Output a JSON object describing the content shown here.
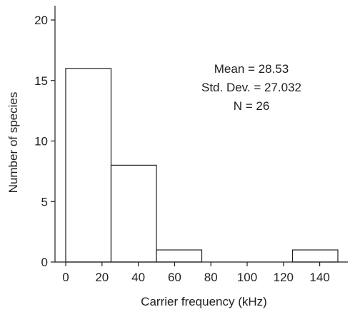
{
  "chart_data": {
    "type": "bar",
    "title": "",
    "xlabel": "Carrier frequency (kHz)",
    "ylabel": "Number of species",
    "bin_edges": [
      0,
      25,
      50,
      75,
      100,
      125,
      150
    ],
    "values": [
      16,
      8,
      1,
      0,
      0,
      1
    ],
    "xlim": [
      0,
      150
    ],
    "ylim": [
      0,
      21
    ],
    "x_ticks": [
      0,
      20,
      40,
      60,
      80,
      100,
      120,
      140
    ],
    "y_ticks": [
      0,
      5,
      10,
      15,
      20
    ],
    "grid": false,
    "annotations": [
      "Mean = 28.53",
      "Std. Dev. = 27.032",
      "N = 26"
    ],
    "colors": {
      "bar_fill": "#ffffff",
      "stroke": "#1f1f1f"
    }
  }
}
